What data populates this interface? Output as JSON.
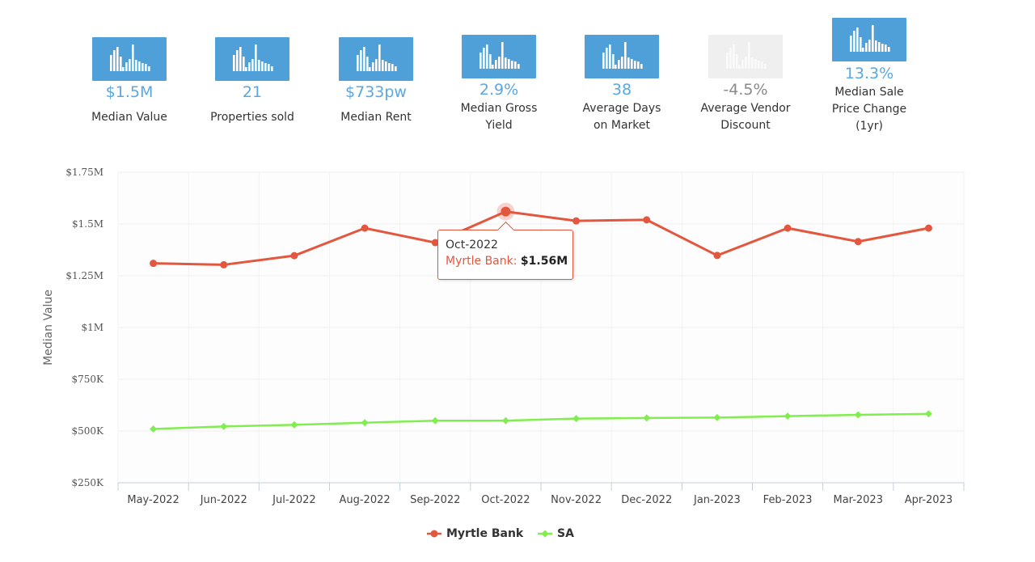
{
  "stats": [
    {
      "value": "$1.5M",
      "label": "Median Value",
      "icon": "bar-chart-icon",
      "active": true
    },
    {
      "value": "21",
      "label": "Properties sold",
      "icon": "bar-chart-icon",
      "active": true
    },
    {
      "value": "$733pw",
      "label": "Median Rent",
      "icon": "bar-chart-icon",
      "active": true
    },
    {
      "value": "2.9%",
      "label_line1": "Median Gross",
      "label_line2": "Yield",
      "icon": "bar-chart-icon",
      "active": true
    },
    {
      "value": "38",
      "label_line1": "Average Days",
      "label_line2": "on Market",
      "icon": "bar-chart-icon",
      "active": true
    },
    {
      "value": "-4.5%",
      "label_line1": "Average Vendor",
      "label_line2": "Discount",
      "icon": "bar-chart-icon",
      "active": false
    },
    {
      "value": "13.3%",
      "label_line1": "Median Sale",
      "label_line2": "Price Change",
      "label_line3": "(1yr)",
      "icon": "bar-chart-icon",
      "active": true
    }
  ],
  "colors": {
    "stat_active": "#4f9fd8",
    "stat_value": "#5aa8e2",
    "stat_inactive": "#efefef",
    "stat_inactive_value": "#8a8a8a",
    "series_myrtle": "#e4573f",
    "series_sa": "#80ee4e",
    "grid": "#eeeeee",
    "axis": "#c4cfd9"
  },
  "chart_data": {
    "type": "line",
    "title": "",
    "xlabel": "",
    "ylabel": "Median Value",
    "categories": [
      "May-2022",
      "Jun-2022",
      "Jul-2022",
      "Aug-2022",
      "Sep-2022",
      "Oct-2022",
      "Nov-2022",
      "Dec-2022",
      "Jan-2023",
      "Feb-2023",
      "Mar-2023",
      "Apr-2023"
    ],
    "series": [
      {
        "name": "Myrtle Bank",
        "color": "#e4573f",
        "marker": "circle",
        "values": [
          1310000,
          1303000,
          1347000,
          1480000,
          1410000,
          1560000,
          1515000,
          1520000,
          1348000,
          1480000,
          1415000,
          1480000
        ]
      },
      {
        "name": "SA",
        "color": "#80ee4e",
        "marker": "diamond",
        "values": [
          510000,
          522000,
          530000,
          540000,
          550000,
          550000,
          560000,
          563000,
          565000,
          572000,
          578000,
          583000
        ]
      }
    ],
    "ylim": [
      250000,
      1750000
    ],
    "yticks": [
      250000,
      500000,
      750000,
      1000000,
      1250000,
      1500000,
      1750000
    ],
    "ytick_labels": [
      "$250K",
      "$500K",
      "$750K",
      "$1M",
      "$1.25M",
      "$1.5M",
      "$1.75M"
    ],
    "grid": true,
    "legend": "bottom-center",
    "tooltip": {
      "category": "Oct-2022",
      "series": "Myrtle Bank",
      "label": "Myrtle Bank:",
      "value": "$1.56M"
    }
  }
}
